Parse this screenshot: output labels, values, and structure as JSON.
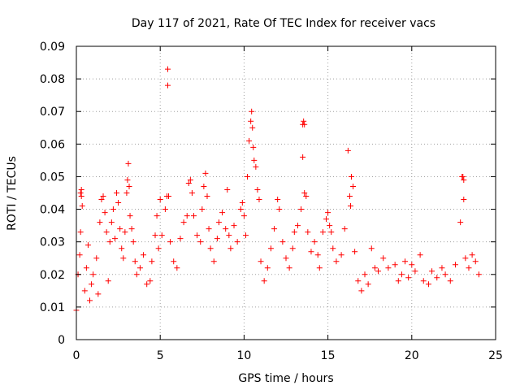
{
  "chart_data": {
    "type": "scatter",
    "title": "Day 117 of 2021, Rate Of TEC Index for receiver vacs",
    "xlabel": "GPS time / hours",
    "ylabel": "ROTI / TECUs",
    "xlim": [
      0,
      25
    ],
    "ylim": [
      0,
      0.09
    ],
    "x_ticks": [
      "0",
      "5",
      "10",
      "15",
      "20",
      "25"
    ],
    "y_ticks": [
      "0",
      "0.01",
      "0.02",
      "0.03",
      "0.04",
      "0.05",
      "0.06",
      "0.07",
      "0.08",
      "0.09"
    ],
    "x_tick_values": [
      0,
      5,
      10,
      15,
      20,
      25
    ],
    "y_tick_values": [
      0,
      0.01,
      0.02,
      0.03,
      0.04,
      0.05,
      0.06,
      0.07,
      0.08,
      0.09
    ],
    "grid": true,
    "marker": "+",
    "color": "#ff0000",
    "series": [
      {
        "values": [
          [
            0.0,
            0.009
          ],
          [
            0.1,
            0.02
          ],
          [
            0.2,
            0.026
          ],
          [
            0.25,
            0.045
          ],
          [
            0.3,
            0.046
          ],
          [
            0.3,
            0.044
          ],
          [
            0.35,
            0.041
          ],
          [
            0.25,
            0.033
          ],
          [
            0.5,
            0.015
          ],
          [
            0.6,
            0.022
          ],
          [
            0.7,
            0.029
          ],
          [
            0.8,
            0.012
          ],
          [
            0.9,
            0.017
          ],
          [
            1.0,
            0.02
          ],
          [
            1.2,
            0.025
          ],
          [
            1.3,
            0.014
          ],
          [
            1.4,
            0.036
          ],
          [
            1.5,
            0.043
          ],
          [
            1.6,
            0.044
          ],
          [
            1.7,
            0.039
          ],
          [
            1.8,
            0.033
          ],
          [
            1.9,
            0.018
          ],
          [
            2.0,
            0.03
          ],
          [
            2.1,
            0.036
          ],
          [
            2.2,
            0.04
          ],
          [
            2.3,
            0.031
          ],
          [
            2.4,
            0.045
          ],
          [
            2.5,
            0.042
          ],
          [
            2.6,
            0.034
          ],
          [
            2.7,
            0.028
          ],
          [
            2.8,
            0.025
          ],
          [
            2.9,
            0.033
          ],
          [
            3.0,
            0.045
          ],
          [
            3.05,
            0.049
          ],
          [
            3.1,
            0.054
          ],
          [
            3.15,
            0.047
          ],
          [
            3.2,
            0.038
          ],
          [
            3.3,
            0.034
          ],
          [
            3.4,
            0.03
          ],
          [
            3.5,
            0.024
          ],
          [
            3.6,
            0.02
          ],
          [
            3.8,
            0.022
          ],
          [
            4.0,
            0.026
          ],
          [
            4.2,
            0.017
          ],
          [
            4.4,
            0.018
          ],
          [
            4.5,
            0.024
          ],
          [
            4.7,
            0.032
          ],
          [
            4.8,
            0.038
          ],
          [
            4.9,
            0.028
          ],
          [
            5.0,
            0.043
          ],
          [
            5.1,
            0.032
          ],
          [
            5.3,
            0.04
          ],
          [
            5.4,
            0.044
          ],
          [
            5.45,
            0.083
          ],
          [
            5.45,
            0.078
          ],
          [
            5.5,
            0.044
          ],
          [
            5.6,
            0.03
          ],
          [
            5.8,
            0.024
          ],
          [
            6.0,
            0.022
          ],
          [
            6.2,
            0.031
          ],
          [
            6.4,
            0.036
          ],
          [
            6.6,
            0.038
          ],
          [
            6.7,
            0.048
          ],
          [
            6.8,
            0.049
          ],
          [
            6.9,
            0.045
          ],
          [
            7.0,
            0.038
          ],
          [
            7.2,
            0.032
          ],
          [
            7.4,
            0.03
          ],
          [
            7.5,
            0.04
          ],
          [
            7.6,
            0.047
          ],
          [
            7.7,
            0.051
          ],
          [
            7.8,
            0.044
          ],
          [
            7.9,
            0.034
          ],
          [
            8.0,
            0.028
          ],
          [
            8.2,
            0.024
          ],
          [
            8.4,
            0.031
          ],
          [
            8.5,
            0.036
          ],
          [
            8.7,
            0.039
          ],
          [
            8.9,
            0.034
          ],
          [
            9.0,
            0.046
          ],
          [
            9.1,
            0.032
          ],
          [
            9.2,
            0.028
          ],
          [
            9.4,
            0.035
          ],
          [
            9.6,
            0.03
          ],
          [
            9.8,
            0.04
          ],
          [
            9.9,
            0.042
          ],
          [
            10.0,
            0.038
          ],
          [
            10.1,
            0.032
          ],
          [
            10.2,
            0.05
          ],
          [
            10.3,
            0.061
          ],
          [
            10.4,
            0.067
          ],
          [
            10.45,
            0.07
          ],
          [
            10.5,
            0.065
          ],
          [
            10.55,
            0.059
          ],
          [
            10.6,
            0.055
          ],
          [
            10.7,
            0.053
          ],
          [
            10.8,
            0.046
          ],
          [
            10.9,
            0.043
          ],
          [
            11.0,
            0.024
          ],
          [
            11.2,
            0.018
          ],
          [
            11.4,
            0.022
          ],
          [
            11.6,
            0.028
          ],
          [
            11.8,
            0.034
          ],
          [
            12.0,
            0.043
          ],
          [
            12.1,
            0.04
          ],
          [
            12.3,
            0.03
          ],
          [
            12.5,
            0.025
          ],
          [
            12.7,
            0.022
          ],
          [
            12.9,
            0.028
          ],
          [
            13.0,
            0.033
          ],
          [
            13.2,
            0.035
          ],
          [
            13.4,
            0.04
          ],
          [
            13.5,
            0.066
          ],
          [
            13.55,
            0.067
          ],
          [
            13.6,
            0.066
          ],
          [
            13.5,
            0.056
          ],
          [
            13.6,
            0.045
          ],
          [
            13.7,
            0.044
          ],
          [
            13.8,
            0.033
          ],
          [
            14.0,
            0.027
          ],
          [
            14.2,
            0.03
          ],
          [
            14.4,
            0.026
          ],
          [
            14.5,
            0.022
          ],
          [
            14.7,
            0.033
          ],
          [
            14.9,
            0.037
          ],
          [
            15.0,
            0.039
          ],
          [
            15.1,
            0.035
          ],
          [
            15.2,
            0.033
          ],
          [
            15.3,
            0.028
          ],
          [
            15.5,
            0.024
          ],
          [
            15.8,
            0.026
          ],
          [
            16.0,
            0.034
          ],
          [
            16.2,
            0.058
          ],
          [
            16.3,
            0.044
          ],
          [
            16.35,
            0.041
          ],
          [
            16.4,
            0.05
          ],
          [
            16.5,
            0.047
          ],
          [
            16.6,
            0.027
          ],
          [
            16.8,
            0.018
          ],
          [
            17.0,
            0.015
          ],
          [
            17.2,
            0.02
          ],
          [
            17.4,
            0.017
          ],
          [
            17.6,
            0.028
          ],
          [
            17.8,
            0.022
          ],
          [
            18.0,
            0.021
          ],
          [
            18.3,
            0.025
          ],
          [
            18.6,
            0.022
          ],
          [
            19.0,
            0.023
          ],
          [
            19.2,
            0.018
          ],
          [
            19.4,
            0.02
          ],
          [
            19.6,
            0.024
          ],
          [
            19.8,
            0.019
          ],
          [
            20.0,
            0.023
          ],
          [
            20.2,
            0.021
          ],
          [
            20.5,
            0.026
          ],
          [
            20.7,
            0.018
          ],
          [
            21.0,
            0.017
          ],
          [
            21.2,
            0.021
          ],
          [
            21.5,
            0.019
          ],
          [
            21.8,
            0.022
          ],
          [
            22.0,
            0.02
          ],
          [
            22.3,
            0.018
          ],
          [
            22.6,
            0.023
          ],
          [
            22.9,
            0.036
          ],
          [
            23.0,
            0.05
          ],
          [
            23.05,
            0.05
          ],
          [
            23.1,
            0.049
          ],
          [
            23.1,
            0.043
          ],
          [
            23.2,
            0.025
          ],
          [
            23.4,
            0.022
          ],
          [
            23.6,
            0.026
          ],
          [
            23.8,
            0.024
          ],
          [
            24.0,
            0.02
          ]
        ]
      }
    ]
  }
}
